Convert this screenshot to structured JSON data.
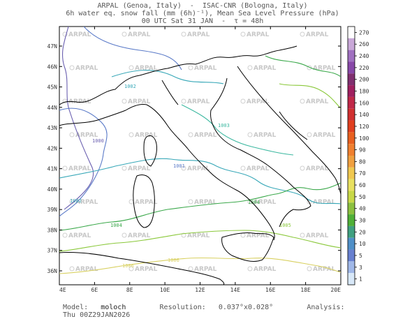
{
  "title": {
    "line1": "ARPAL (Genoa, Italy)  -  ISAC-CNR (Bologna, Italy)",
    "line2": "6h water eq. snow fall (mm (6h)⁻¹), Mean Sea Level Pressure (hPa)",
    "line3": "00 UTC Sat 31 JAN  -  τ = 48h"
  },
  "map": {
    "lat_labels": [
      "47N",
      "46N",
      "45N",
      "44N",
      "43N",
      "42N",
      "41N",
      "40N",
      "39N",
      "38N",
      "37N",
      "36N"
    ],
    "lon_labels": [
      "4E",
      "6E",
      "8E",
      "10E",
      "12E",
      "14E",
      "16E",
      "18E",
      "20E"
    ],
    "watermark": "ARPAL",
    "isobars": [
      {
        "label": "1000",
        "color": "#6a5fb0"
      },
      {
        "label": "1001",
        "color": "#5a7ac8"
      },
      {
        "label": "1002",
        "color": "#38a8b8"
      },
      {
        "label": "1003",
        "color": "#3cb8a0"
      },
      {
        "label": "1004",
        "color": "#3aa84a"
      },
      {
        "label": "1005",
        "color": "#8ac83a"
      },
      {
        "label": "1006",
        "color": "#d8d060"
      }
    ]
  },
  "colorbar": {
    "levels": [
      "270",
      "260",
      "240",
      "220",
      "200",
      "180",
      "160",
      "140",
      "120",
      "100",
      "90",
      "80",
      "70",
      "60",
      "50",
      "40",
      "30",
      "20",
      "10",
      "5",
      "3",
      "1"
    ],
    "colors": [
      "#ffffff",
      "#c9a8d8",
      "#a070c0",
      "#8848a8",
      "#803070",
      "#a02060",
      "#c02848",
      "#d03030",
      "#e04020",
      "#e86020",
      "#f08030",
      "#f0a040",
      "#f0c850",
      "#e8e060",
      "#c8d848",
      "#8cc040",
      "#50b038",
      "#40a080",
      "#5090c8",
      "#6880d0",
      "#a0b8e8",
      "#d8e8f8"
    ]
  },
  "footer": {
    "model_label": "Model:",
    "model_value": "moloch",
    "resolution_label": "Resolution:",
    "resolution_value": "0.037°x0.028°",
    "analysis_label": "Analysis:",
    "analysis_value": "Thu 00Z29JAN2026"
  }
}
